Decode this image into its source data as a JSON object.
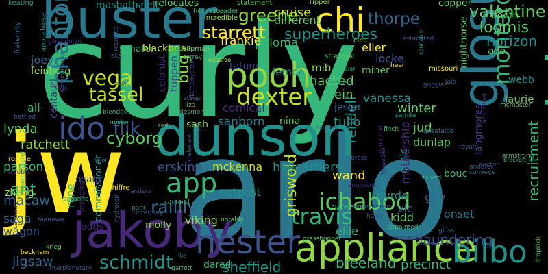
{
  "words": [
    {
      "text": "curly",
      "color": "#35b779"
    },
    {
      "text": "arlo",
      "color": "#2a788e"
    },
    {
      "text": "jw",
      "color": "#fde725"
    },
    {
      "text": "dunson",
      "color": "#21918c"
    },
    {
      "text": "buster",
      "color": "#2a788e"
    },
    {
      "text": "jakoby",
      "color": "#482878"
    },
    {
      "text": "melvin",
      "color": "#35b779"
    },
    {
      "text": "glosu",
      "color": "#2a788e"
    },
    {
      "text": "appliance",
      "color": "#90d743"
    },
    {
      "text": "hester",
      "color": "#3b528b"
    },
    {
      "text": "bilbo",
      "color": "#21918c"
    },
    {
      "text": "pooh",
      "color": "#90d743"
    },
    {
      "text": "chi",
      "color": "#fde725"
    },
    {
      "text": "ido",
      "color": "#3b528b"
    },
    {
      "text": "app",
      "color": "#35b779"
    },
    {
      "text": "phantom",
      "color": "#2a788e"
    },
    {
      "text": "ichabod",
      "color": "#5ec962"
    },
    {
      "text": "dexter",
      "color": "#c8e020"
    },
    {
      "text": "vega",
      "color": "#c8e020"
    },
    {
      "text": "montero",
      "color": "#35b779"
    },
    {
      "text": "tassel",
      "color": "#c8e020"
    },
    {
      "text": "travis",
      "color": "#35b779"
    },
    {
      "text": "flik",
      "color": "#3b528b"
    },
    {
      "text": "cyborg",
      "color": "#5ec962"
    },
    {
      "text": "schmidt",
      "color": "#21918c"
    },
    {
      "text": "valentine",
      "color": "#5ec962"
    },
    {
      "text": "loomis",
      "color": "#5ec962"
    },
    {
      "text": "superheroes",
      "color": "#21918c"
    },
    {
      "text": "starrett",
      "color": "#fde725"
    },
    {
      "text": "greene",
      "color": "#90d743"
    },
    {
      "text": "thorpe",
      "color": "#31688e"
    },
    {
      "text": "horizon",
      "color": "#21918c"
    },
    {
      "text": "raillly",
      "color": "#31688e"
    },
    {
      "text": "griswold",
      "color": "#c8e020"
    },
    {
      "text": "bug",
      "color": "#90d743"
    },
    {
      "text": "recruitment",
      "color": "#35b779"
    },
    {
      "text": "laundering",
      "color": "#3b528b"
    },
    {
      "text": "rendell",
      "color": "#21918c"
    },
    {
      "text": "sheffield",
      "color": "#21918c"
    },
    {
      "text": "breeland",
      "color": "#35b779"
    },
    {
      "text": "precinct",
      "color": "#35b779"
    },
    {
      "text": "jigsaw",
      "color": "#31688e"
    },
    {
      "text": "macaw",
      "color": "#31688e"
    },
    {
      "text": "ant",
      "color": "#35b779"
    },
    {
      "text": "ratchett",
      "color": "#90d743"
    },
    {
      "text": "lynda",
      "color": "#5ec962"
    },
    {
      "text": "erskine",
      "color": "#3b528b"
    },
    {
      "text": "mckenna",
      "color": "#c8e020"
    },
    {
      "text": "helicarriers",
      "color": "#21918c"
    },
    {
      "text": "viking",
      "color": "#90d743"
    },
    {
      "text": "molly",
      "color": "#90d743"
    },
    {
      "text": "rune",
      "color": "#35b779"
    },
    {
      "text": "ellie",
      "color": "#35b779"
    },
    {
      "text": "wand",
      "color": "#fde725"
    },
    {
      "text": "byrde",
      "color": "#21918c"
    },
    {
      "text": "vic",
      "color": "#3b528b"
    },
    {
      "text": "kidd",
      "color": "#5ec962"
    },
    {
      "text": "giry",
      "color": "#31688e"
    },
    {
      "text": "onset",
      "color": "#2a788e"
    },
    {
      "text": "tulio",
      "color": "#21918c"
    },
    {
      "text": "jud",
      "color": "#5ec962"
    },
    {
      "text": "dunlap",
      "color": "#5ec962"
    },
    {
      "text": "winter",
      "color": "#5ec962"
    },
    {
      "text": "vanessa",
      "color": "#21918c"
    },
    {
      "text": "sanborn",
      "color": "#2a788e"
    },
    {
      "text": "comical",
      "color": "#482878"
    },
    {
      "text": "tatum",
      "color": "#443983"
    },
    {
      "text": "hacked",
      "color": "#5ec962"
    },
    {
      "text": "ein",
      "color": "#5ec962"
    },
    {
      "text": "jester",
      "color": "#31688e"
    },
    {
      "text": "locke",
      "color": "#3b528b"
    },
    {
      "text": "eller",
      "color": "#fde725"
    },
    {
      "text": "mib",
      "color": "#90d743"
    },
    {
      "text": "lemon",
      "color": "#21918c"
    },
    {
      "text": "paloma",
      "color": "#35b779"
    },
    {
      "text": "frankie",
      "color": "#fde725"
    },
    {
      "text": "cruise",
      "color": "#c8e020"
    },
    {
      "text": "different",
      "color": "#5ec962"
    },
    {
      "text": "relocates",
      "color": "#5ec962"
    },
    {
      "text": "ado",
      "color": "#5ec962"
    },
    {
      "text": "webb",
      "color": "#21918c"
    },
    {
      "text": "laurie",
      "color": "#5ec962"
    },
    {
      "text": "hendrickson",
      "color": "#31688e"
    },
    {
      "text": "booth",
      "color": "#5ec962"
    },
    {
      "text": "copper",
      "color": "#5ec962"
    },
    {
      "text": "nighthorse",
      "color": "#5ec962"
    },
    {
      "text": "langmores",
      "color": "#443983"
    },
    {
      "text": "mothership",
      "color": "#482878"
    },
    {
      "text": "clinic",
      "color": "#21918c"
    },
    {
      "text": "bouc",
      "color": "#35b779"
    },
    {
      "text": "outpost",
      "color": "#21918c"
    },
    {
      "text": "commissioner",
      "color": "#21918c"
    },
    {
      "text": "parson",
      "color": "#35b779"
    },
    {
      "text": "saga",
      "color": "#31688e"
    },
    {
      "text": "wagon",
      "color": "#3b528b"
    },
    {
      "text": "zhang",
      "color": "#90d743"
    },
    {
      "text": "odds",
      "color": "#482878"
    },
    {
      "text": "joey",
      "color": "#31688e"
    },
    {
      "text": "feinberg",
      "color": "#90d743"
    },
    {
      "text": "ali",
      "color": "#35b779"
    },
    {
      "text": "osage",
      "color": "#3b528b"
    },
    {
      "text": "sash",
      "color": "#90d743"
    },
    {
      "text": "nina",
      "color": "#5ec962"
    },
    {
      "text": "dared",
      "color": "#35b779"
    },
    {
      "text": "masbath",
      "color": "#21918c"
    },
    {
      "text": "snells",
      "color": "#21918c"
    },
    {
      "text": "schafer",
      "color": "#35b779"
    },
    {
      "text": "blackbriar",
      "color": "#c8e020"
    },
    {
      "text": "centauri",
      "color": "#443983"
    },
    {
      "text": "colonist",
      "color": "#482878"
    },
    {
      "text": "tuppen",
      "color": "#3b528b"
    },
    {
      "text": "miner",
      "color": "#5ec962"
    },
    {
      "text": "clell",
      "color": "#90d743"
    },
    {
      "text": "keating",
      "color": "#21918c"
    },
    {
      "text": "statement",
      "color": "#5ec962"
    },
    {
      "text": "ripper",
      "color": "#90d743"
    },
    {
      "text": "homesteader",
      "color": "#35b779"
    },
    {
      "text": "incredible",
      "color": "#90d743"
    },
    {
      "text": "fraternity",
      "color": "#31688e"
    },
    {
      "text": "apocalypse",
      "color": "#21918c"
    },
    {
      "text": "resolute",
      "color": "#3b528b"
    },
    {
      "text": "gwendolyn",
      "color": "#443983"
    },
    {
      "text": "administrator",
      "color": "#3b528b"
    },
    {
      "text": "chapman",
      "color": "#5ec962"
    },
    {
      "text": "torrey",
      "color": "#35b779"
    },
    {
      "text": "eduardo",
      "color": "#c8e020"
    },
    {
      "text": "strategic",
      "color": "#5ec962"
    },
    {
      "text": "adler",
      "color": "#35b779"
    },
    {
      "text": "heer",
      "color": "#fde725"
    },
    {
      "text": "estimated",
      "color": "#3b528b"
    },
    {
      "text": "cannabis",
      "color": "#21918c"
    },
    {
      "text": "missouri",
      "color": "#fde725"
    },
    {
      "text": "titular",
      "color": "#21918c"
    },
    {
      "text": "goggles",
      "color": "#3b528b"
    },
    {
      "text": "lalo",
      "color": "#31688e"
    },
    {
      "text": "arbuthnot",
      "color": "#482878"
    },
    {
      "text": "mcmaster",
      "color": "#5ec962"
    },
    {
      "text": "semite",
      "color": "#21918c"
    },
    {
      "text": "grisefalde",
      "color": "#2a788e"
    },
    {
      "text": "armstrong",
      "color": "#35b779"
    },
    {
      "text": "sector",
      "color": "#3b528b"
    },
    {
      "text": "royale",
      "color": "#3b528b"
    },
    {
      "text": "brackett",
      "color": "#35b779"
    },
    {
      "text": "anderer",
      "color": "#3b528b"
    },
    {
      "text": "conveys",
      "color": "#2a788e"
    },
    {
      "text": "solved",
      "color": "#35b779"
    },
    {
      "text": "augment",
      "color": "#482878"
    },
    {
      "text": "brass",
      "color": "#3b528b"
    },
    {
      "text": "brigadier",
      "color": "#443983"
    },
    {
      "text": "economic",
      "color": "#482878"
    },
    {
      "text": "mcfarland",
      "color": "#21918c"
    },
    {
      "text": "finch",
      "color": "#35b779"
    },
    {
      "text": "feinvent",
      "color": "#31688e"
    },
    {
      "text": "liza",
      "color": "#35b779"
    },
    {
      "text": "desmond",
      "color": "#35b779"
    },
    {
      "text": "steep",
      "color": "#31688e"
    },
    {
      "text": "flamboyantly",
      "color": "#443983"
    },
    {
      "text": "cavebby",
      "color": "#2a788e"
    },
    {
      "text": "irrelevant",
      "color": "#3b528b"
    },
    {
      "text": "zeit",
      "color": "#35b779"
    },
    {
      "text": "blended",
      "color": "#35b779"
    },
    {
      "text": "mister",
      "color": "#35b779"
    },
    {
      "text": "battled",
      "color": "#3b528b"
    },
    {
      "text": "roselle",
      "color": "#fde725"
    },
    {
      "text": "sharpshooter",
      "color": "#35b779"
    },
    {
      "text": "chiffre",
      "color": "#fde725"
    },
    {
      "text": "trouble",
      "color": "#443983"
    },
    {
      "text": "smuggling",
      "color": "#482878"
    },
    {
      "text": "color",
      "color": "#2a788e"
    },
    {
      "text": "callaway",
      "color": "#482878"
    },
    {
      "text": "manawa",
      "color": "#3b528b"
    },
    {
      "text": "suzanne",
      "color": "#35b779"
    },
    {
      "text": "hydrofoil",
      "color": "#31688e"
    },
    {
      "text": "pant",
      "color": "#21918c"
    },
    {
      "text": "anders",
      "color": "#3b528b"
    },
    {
      "text": "interplay",
      "color": "#3b528b"
    },
    {
      "text": "contend",
      "color": "#35b779"
    },
    {
      "text": "notably",
      "color": "#5ec962"
    },
    {
      "text": "carpet",
      "color": "#31688e"
    },
    {
      "text": "burpelson",
      "color": "#35b779"
    },
    {
      "text": "alison",
      "color": "#31688e"
    },
    {
      "text": "terror",
      "color": "#443983"
    },
    {
      "text": "hater",
      "color": "#3b528b"
    },
    {
      "text": "appointed",
      "color": "#35b779"
    },
    {
      "text": "gloss",
      "color": "#31688e"
    },
    {
      "text": "anderes",
      "color": "#3b528b"
    },
    {
      "text": "pterodactyl",
      "color": "#482878"
    },
    {
      "text": "grasshopper",
      "color": "#5ec962"
    },
    {
      "text": "krieg",
      "color": "#5ec962"
    },
    {
      "text": "beckham",
      "color": "#fde725"
    },
    {
      "text": "garrett",
      "color": "#35b779"
    },
    {
      "text": "ike",
      "color": "#2a788e"
    },
    {
      "text": "interplanetary",
      "color": "#3b528b"
    },
    {
      "text": "dropkick",
      "color": "#5ec962"
    },
    {
      "text": "aka",
      "color": "#3b528b"
    },
    {
      "text": "sac",
      "color": "#3b528b"
    },
    {
      "text": "zola",
      "color": "#3b528b"
    }
  ]
}
